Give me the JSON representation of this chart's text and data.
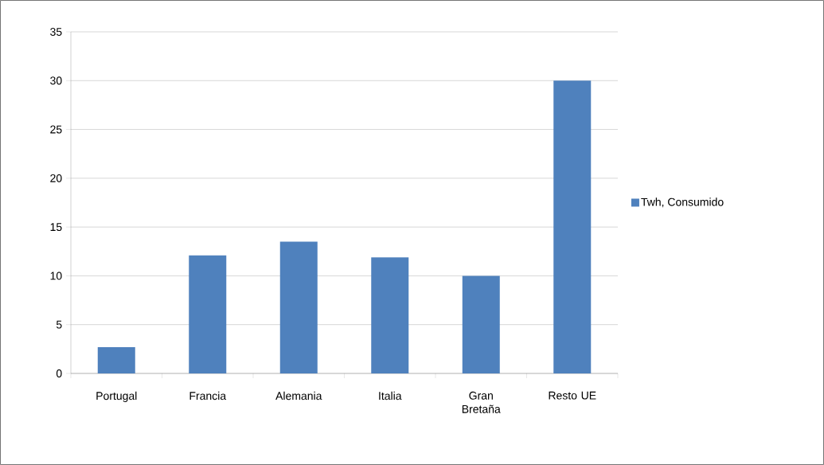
{
  "chart_data": {
    "type": "bar",
    "categories": [
      "Portugal",
      "Francia",
      "Alemania",
      "Italia",
      "Gran Bretaña",
      "Resto UE"
    ],
    "series": [
      {
        "name": "Twh, Consumido",
        "color": "#4f81bd",
        "values": [
          2.7,
          12.1,
          13.5,
          11.9,
          10,
          30
        ]
      }
    ],
    "ylim": [
      0,
      35
    ],
    "yticks": [
      0,
      5,
      10,
      15,
      20,
      25,
      30,
      35
    ],
    "grid": "y",
    "legend": "right"
  }
}
